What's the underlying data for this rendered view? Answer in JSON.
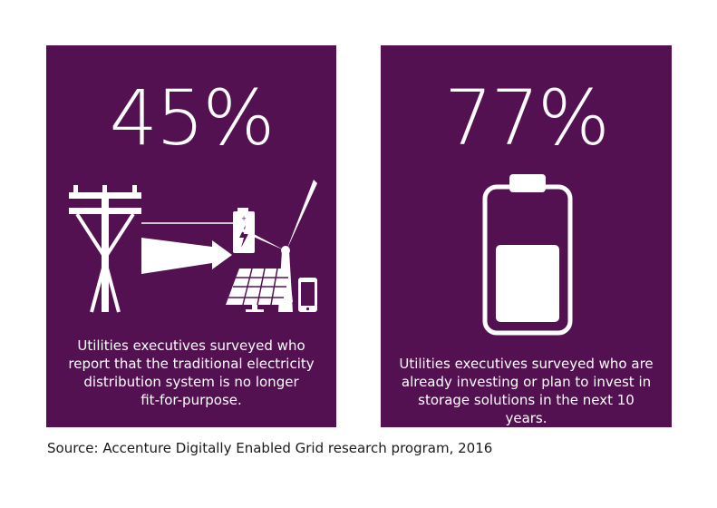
{
  "colors": {
    "card_background": "#541152",
    "foreground": "#ffffff",
    "source_text": "#1a1a1a"
  },
  "left_card": {
    "stat": "45%",
    "caption_lines": [
      "Utilities executives surveyed who",
      "report that the traditional electricity",
      "distribution system is no longer",
      "fit-for-purpose."
    ],
    "icons": [
      "utility-pole-icon",
      "battery-charge-icon",
      "arrow-right-icon",
      "wind-turbine-icon",
      "solar-panel-icon",
      "smartphone-icon"
    ]
  },
  "right_card": {
    "stat": "77%",
    "caption_lines": [
      "Utilities executives surveyed who are",
      "already investing or plan to invest in",
      "storage solutions in the next 10 years."
    ],
    "battery_fill_level": 0.62,
    "icons": [
      "battery-icon"
    ]
  },
  "source": "Source: Accenture Digitally Enabled Grid research program, 2016"
}
